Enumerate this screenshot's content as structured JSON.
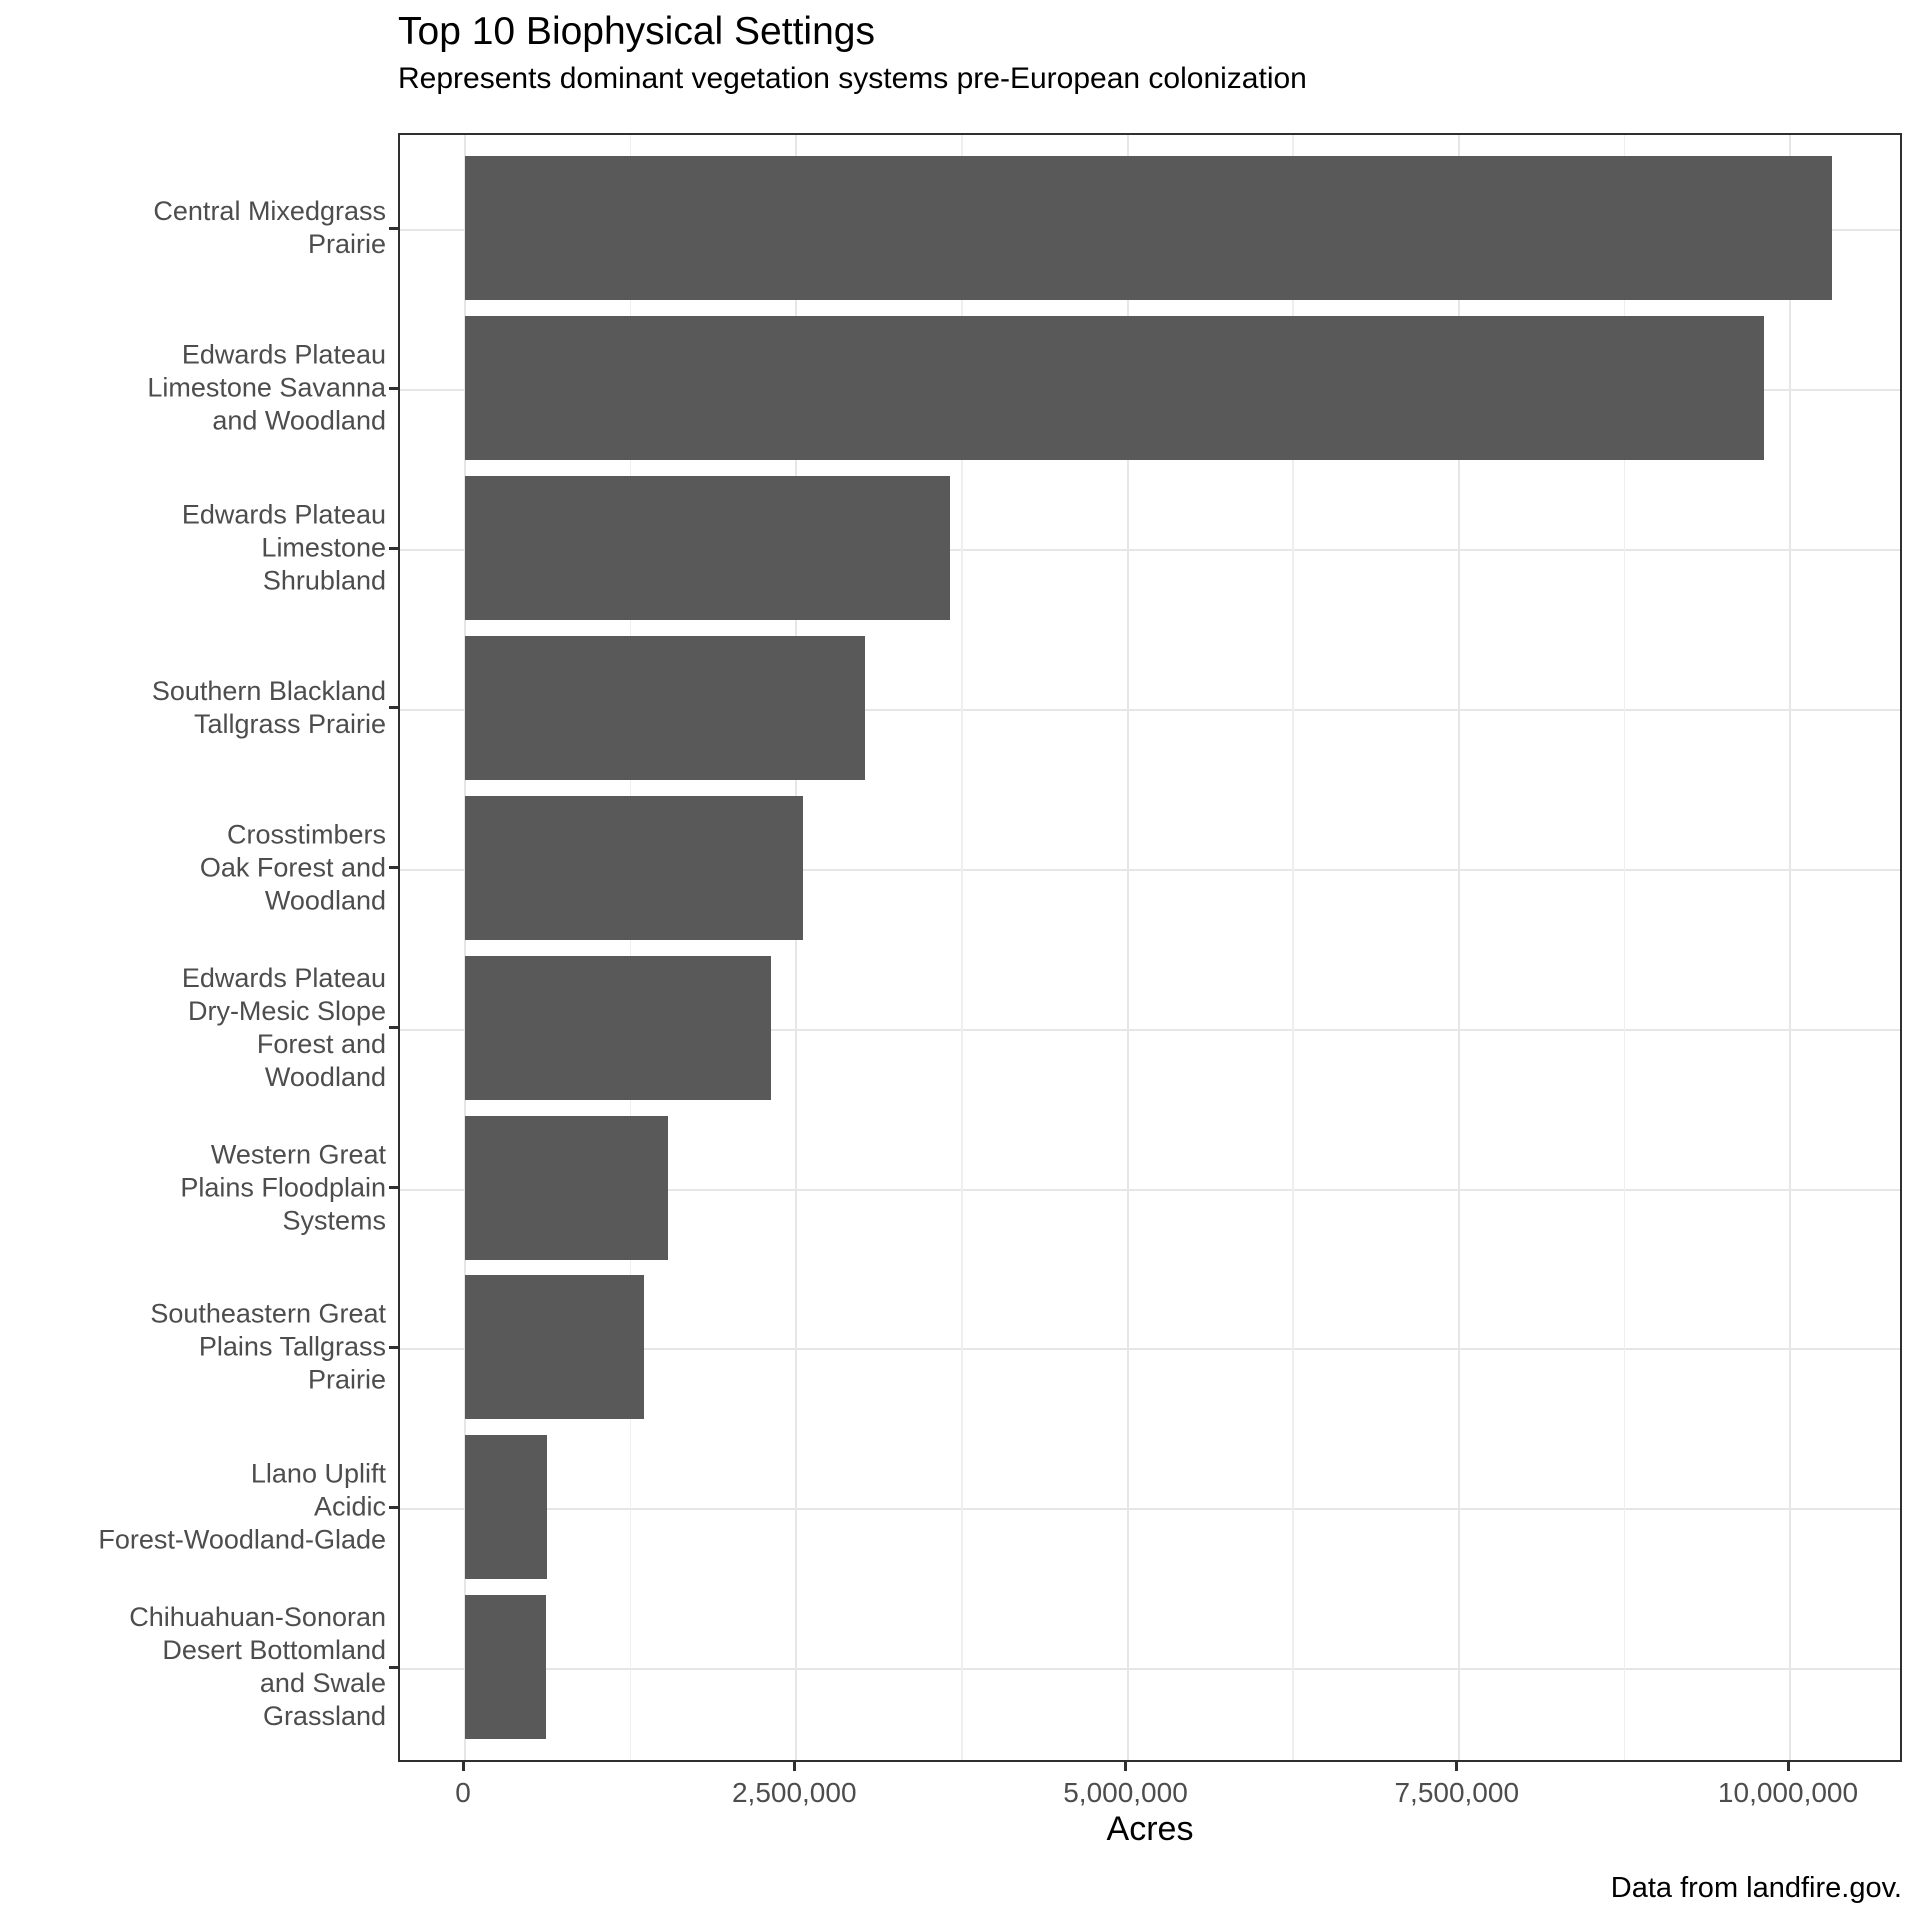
{
  "chart_data": {
    "type": "bar",
    "orientation": "horizontal",
    "title": "Top 10 Biophysical Settings",
    "subtitle": "Represents dominant vegetation systems pre-European colonization",
    "caption": "Data from landfire.gov.",
    "xlabel": "Acres",
    "ylabel": "",
    "xlim": [
      0,
      10600000
    ],
    "x_major_ticks": [
      0,
      2500000,
      5000000,
      7500000,
      10000000
    ],
    "x_major_tick_labels": [
      "0",
      "2,500,000",
      "5,000,000",
      "7,500,000",
      "10,000,000"
    ],
    "x_minor_ticks": [
      1250000,
      3750000,
      6250000,
      8750000
    ],
    "grid": "major vertical + minor vertical + horizontal at category centers",
    "legend": "none",
    "categories": [
      "Central Mixedgrass Prairie",
      "Edwards Plateau Limestone Savanna and Woodland",
      "Edwards Plateau Limestone Shrubland",
      "Southern Blackland Tallgrass Prairie",
      "Crosstimbers Oak Forest and Woodland",
      "Edwards Plateau Dry-Mesic Slope Forest and Woodland",
      "Western Great Plains Floodplain Systems",
      "Southeastern Great Plains Tallgrass Prairie",
      "Llano Uplift Acidic Forest-Woodland-Glade",
      "Chihuahuan-Sonoran Desert Bottomland and Swale Grassland"
    ],
    "category_label_lines": [
      [
        "Central Mixedgrass",
        "Prairie"
      ],
      [
        "Edwards Plateau",
        "Limestone Savanna",
        "and Woodland"
      ],
      [
        "Edwards Plateau",
        "Limestone",
        "Shrubland"
      ],
      [
        "Southern Blackland",
        "Tallgrass Prairie"
      ],
      [
        "Crosstimbers",
        "Oak Forest and",
        "Woodland"
      ],
      [
        "Edwards Plateau",
        "Dry-Mesic Slope",
        "Forest and",
        "Woodland"
      ],
      [
        "Western Great",
        "Plains Floodplain",
        "Systems"
      ],
      [
        "Southeastern Great",
        "Plains Tallgrass",
        "Prairie"
      ],
      [
        "Llano Uplift",
        "Acidic",
        "Forest-Woodland-Glade"
      ],
      [
        "Chihuahuan-Sonoran",
        "Desert Bottomland",
        "and Swale",
        "Grassland"
      ]
    ],
    "values": [
      10320000,
      9800000,
      3660000,
      3020000,
      2550000,
      2310000,
      1530000,
      1350000,
      620000,
      610000
    ],
    "style": {
      "bar_color": "#595959",
      "grid_major_color": "#e6e6e6",
      "grid_minor_color": "#efefef",
      "axis_text_color": "#4d4d4d",
      "panel_border_color": "#2f2f2f",
      "tick_mark_color": "#2f2f2f"
    }
  }
}
